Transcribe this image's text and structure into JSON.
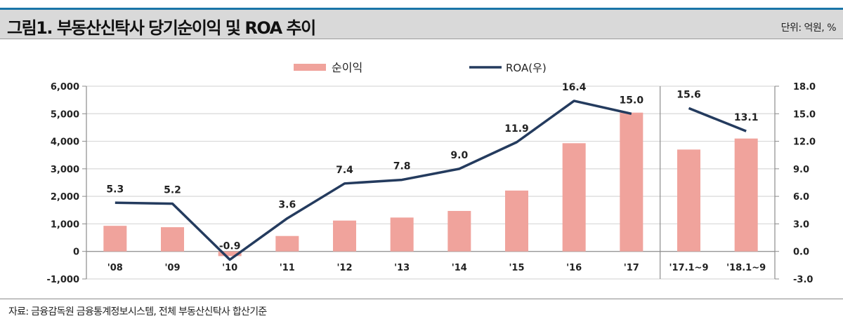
{
  "header": {
    "title": "그림1. 부동산신탁사 당기순이익 및 ROA 추이",
    "unit": "단위: 억원, %"
  },
  "footer": {
    "source": "자료: 금융감독원 금융통계정보시스템, 전체 부동산신탁사 합산기준"
  },
  "colors": {
    "bar": "#f0a39c",
    "line": "#243b5e",
    "grid": "#d9d9d9",
    "axis": "#8c8c8c"
  },
  "chart_data": {
    "type": "bar+line",
    "categories": [
      "'08",
      "'09",
      "'10",
      "'11",
      "'12",
      "'13",
      "'14",
      "'15",
      "'16",
      "'17",
      "'17.1~9",
      "'18.1~9"
    ],
    "series": [
      {
        "name": "순이익",
        "type": "bar",
        "axis": "left",
        "values": [
          930,
          880,
          -170,
          560,
          1120,
          1230,
          1470,
          2210,
          3930,
          5040,
          3700,
          4100
        ]
      },
      {
        "name": "ROA(우)",
        "type": "line",
        "axis": "right",
        "values": [
          5.3,
          5.2,
          -0.9,
          3.6,
          7.4,
          7.8,
          9.0,
          11.9,
          16.4,
          15.0,
          15.6,
          13.1
        ],
        "labels": [
          "5.3",
          "5.2",
          "-0.9",
          "3.6",
          "7.4",
          "7.8",
          "9.0",
          "11.9",
          "16.4",
          "15.0",
          "15.6",
          "13.1"
        ],
        "segments": [
          [
            0,
            9
          ],
          [
            10,
            11
          ]
        ]
      }
    ],
    "y_left": {
      "range": [
        -1000,
        6000
      ],
      "ticks": [
        "6,000",
        "5,000",
        "4,000",
        "3,000",
        "2,000",
        "1,000",
        "0",
        "-1,000"
      ],
      "tick_values": [
        6000,
        5000,
        4000,
        3000,
        2000,
        1000,
        0,
        -1000
      ]
    },
    "y_right": {
      "range": [
        -3,
        18
      ],
      "ticks": [
        "18.0",
        "15.0",
        "12.0",
        "9.0",
        "6.0",
        "3.0",
        "0.0",
        "-3.0"
      ],
      "tick_values": [
        18,
        15,
        12,
        9,
        6,
        3,
        0,
        -3
      ]
    },
    "grid": true,
    "legend": {
      "position": "top-center",
      "items": [
        "순이익",
        "ROA(우)"
      ]
    }
  }
}
